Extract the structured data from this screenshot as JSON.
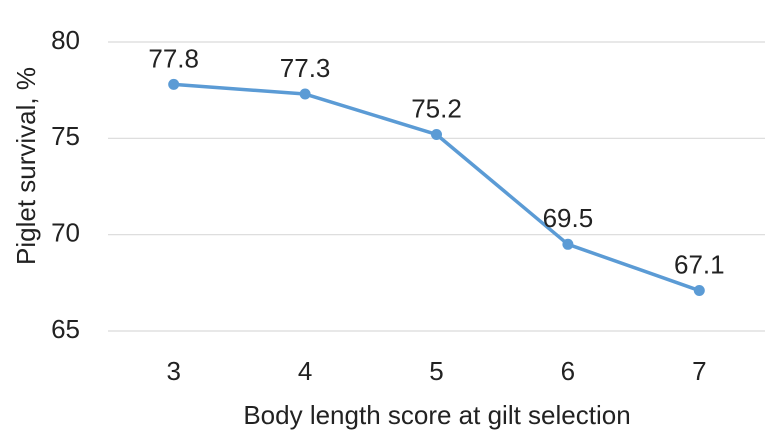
{
  "chart_data": {
    "type": "line",
    "title": "",
    "xlabel": "Body length score at gilt selection",
    "ylabel": "Piglet survival, %",
    "categories": [
      "3",
      "4",
      "5",
      "6",
      "7"
    ],
    "series": [
      {
        "values": [
          77.8,
          77.3,
          75.2,
          69.5,
          67.1
        ],
        "data_labels": [
          "77.8",
          "77.3",
          "75.2",
          "69.5",
          "67.1"
        ]
      }
    ],
    "ylim": [
      65,
      80
    ],
    "yticks": [
      "65",
      "70",
      "75",
      "80"
    ],
    "grid": "horizontal",
    "legend": "none",
    "colors": {
      "line": "#5b9bd5",
      "grid": "#d9d9d9",
      "text": "#222222"
    }
  }
}
